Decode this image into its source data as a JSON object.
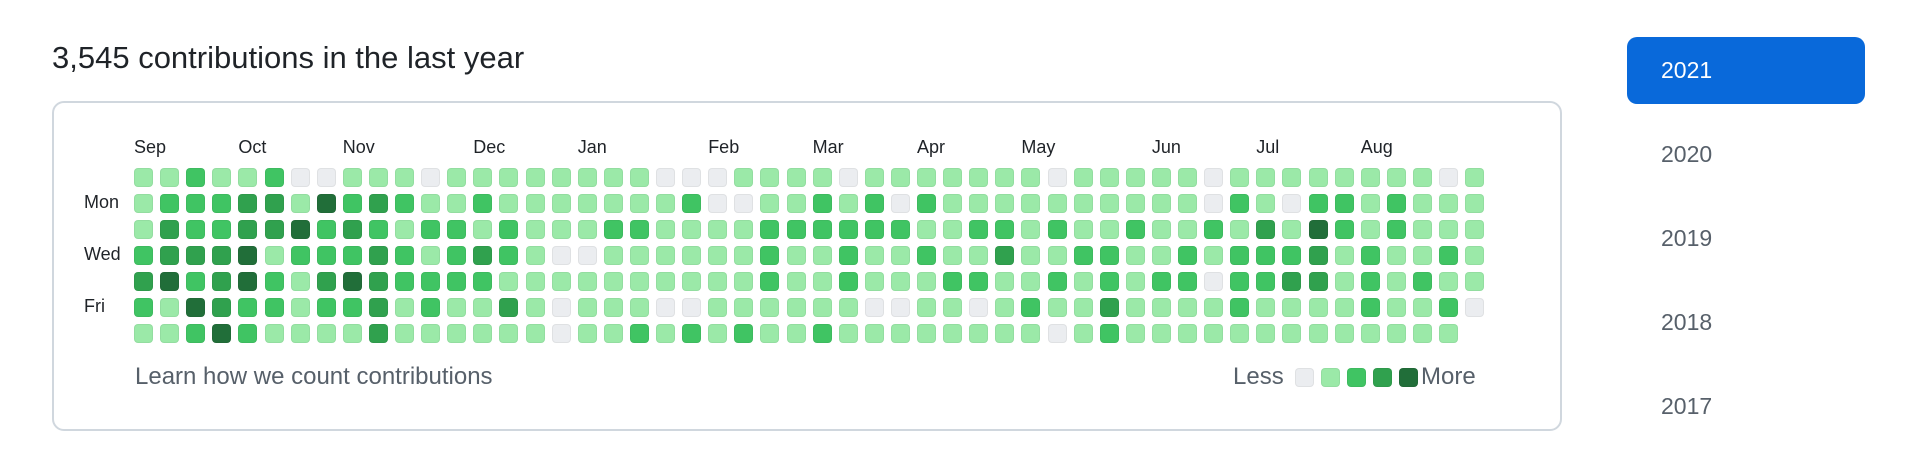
{
  "header": {
    "title": "3,545 contributions in the last year"
  },
  "graph": {
    "months": [
      {
        "label": "Sep",
        "week": 0
      },
      {
        "label": "Oct",
        "week": 4
      },
      {
        "label": "Nov",
        "week": 8
      },
      {
        "label": "Dec",
        "week": 13
      },
      {
        "label": "Jan",
        "week": 17
      },
      {
        "label": "Feb",
        "week": 22
      },
      {
        "label": "Mar",
        "week": 26
      },
      {
        "label": "Apr",
        "week": 30
      },
      {
        "label": "May",
        "week": 34
      },
      {
        "label": "Jun",
        "week": 39
      },
      {
        "label": "Jul",
        "week": 43
      },
      {
        "label": "Aug",
        "week": 47
      }
    ],
    "days": [
      {
        "label": "Mon",
        "row": 1
      },
      {
        "label": "Wed",
        "row": 3
      },
      {
        "label": "Fri",
        "row": 5
      }
    ],
    "colors": [
      "#ebedf0",
      "#9be9a8",
      "#40c463",
      "#30a14e",
      "#216e39"
    ],
    "weeks": [
      [
        1,
        1,
        1,
        2,
        3,
        2,
        1
      ],
      [
        1,
        2,
        3,
        3,
        4,
        1,
        1
      ],
      [
        2,
        2,
        2,
        3,
        2,
        4,
        2
      ],
      [
        1,
        2,
        2,
        3,
        3,
        3,
        4
      ],
      [
        1,
        3,
        3,
        4,
        4,
        2,
        2
      ],
      [
        2,
        3,
        3,
        1,
        2,
        2,
        1
      ],
      [
        0,
        1,
        4,
        2,
        1,
        1,
        1
      ],
      [
        0,
        4,
        2,
        2,
        3,
        2,
        1
      ],
      [
        1,
        2,
        3,
        2,
        4,
        2,
        1
      ],
      [
        1,
        3,
        2,
        3,
        3,
        3,
        3
      ],
      [
        1,
        2,
        1,
        2,
        2,
        1,
        1
      ],
      [
        0,
        1,
        2,
        1,
        2,
        2,
        1
      ],
      [
        1,
        1,
        2,
        2,
        2,
        1,
        1
      ],
      [
        1,
        2,
        1,
        3,
        2,
        1,
        1
      ],
      [
        1,
        1,
        2,
        2,
        1,
        3,
        1
      ],
      [
        1,
        1,
        1,
        1,
        1,
        1,
        1
      ],
      [
        1,
        1,
        1,
        0,
        1,
        0,
        0
      ],
      [
        1,
        1,
        1,
        0,
        1,
        1,
        1
      ],
      [
        1,
        1,
        2,
        1,
        1,
        1,
        1
      ],
      [
        1,
        1,
        2,
        1,
        1,
        1,
        2
      ],
      [
        0,
        1,
        1,
        1,
        1,
        0,
        1
      ],
      [
        0,
        2,
        1,
        1,
        1,
        0,
        2
      ],
      [
        0,
        0,
        1,
        1,
        1,
        1,
        1
      ],
      [
        1,
        0,
        1,
        1,
        1,
        1,
        2
      ],
      [
        1,
        1,
        2,
        2,
        2,
        1,
        1
      ],
      [
        1,
        1,
        2,
        1,
        1,
        1,
        1
      ],
      [
        1,
        2,
        2,
        1,
        1,
        1,
        2
      ],
      [
        0,
        1,
        2,
        2,
        2,
        1,
        1
      ],
      [
        1,
        2,
        2,
        1,
        1,
        0,
        1
      ],
      [
        1,
        0,
        2,
        1,
        1,
        0,
        1
      ],
      [
        1,
        2,
        1,
        2,
        1,
        1,
        1
      ],
      [
        1,
        1,
        1,
        1,
        2,
        1,
        1
      ],
      [
        1,
        1,
        2,
        1,
        2,
        0,
        1
      ],
      [
        1,
        1,
        2,
        3,
        1,
        1,
        1
      ],
      [
        1,
        1,
        1,
        1,
        1,
        2,
        1
      ],
      [
        0,
        1,
        2,
        1,
        2,
        1,
        0
      ],
      [
        1,
        1,
        1,
        2,
        1,
        1,
        1
      ],
      [
        1,
        1,
        1,
        2,
        2,
        3,
        2
      ],
      [
        1,
        1,
        2,
        1,
        1,
        1,
        1
      ],
      [
        1,
        1,
        1,
        1,
        2,
        1,
        1
      ],
      [
        1,
        1,
        1,
        2,
        2,
        1,
        1
      ],
      [
        0,
        0,
        2,
        1,
        0,
        1,
        1
      ],
      [
        1,
        2,
        1,
        2,
        2,
        2,
        1
      ],
      [
        1,
        1,
        3,
        2,
        2,
        1,
        1
      ],
      [
        1,
        0,
        1,
        2,
        3,
        1,
        1
      ],
      [
        1,
        2,
        4,
        3,
        3,
        1,
        1
      ],
      [
        1,
        2,
        2,
        1,
        1,
        1,
        1
      ],
      [
        1,
        1,
        1,
        2,
        2,
        2,
        1
      ],
      [
        1,
        2,
        2,
        1,
        1,
        1,
        1
      ],
      [
        1,
        1,
        1,
        1,
        2,
        1,
        1
      ],
      [
        0,
        1,
        1,
        2,
        1,
        2,
        1
      ],
      [
        1,
        1,
        1,
        1,
        1,
        0,
        null
      ]
    ],
    "footer_link": "Learn how we count contributions",
    "legend": {
      "less": "Less",
      "more": "More"
    }
  },
  "years": [
    {
      "label": "2021",
      "active": true
    },
    {
      "label": "2020",
      "active": false
    },
    {
      "label": "2019",
      "active": false
    },
    {
      "label": "2018",
      "active": false
    },
    {
      "label": "2017",
      "active": false
    }
  ]
}
